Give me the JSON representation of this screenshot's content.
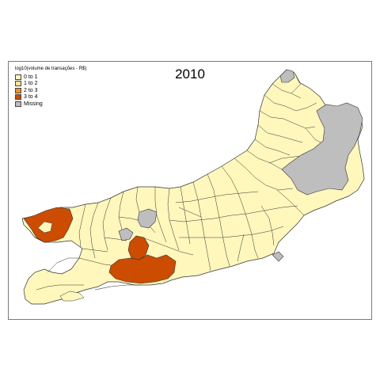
{
  "map": {
    "title": "2010",
    "legend": {
      "title": "log10(volume de transações - R$)",
      "items": [
        {
          "label": "0 to 1",
          "color": "#FFF7BC"
        },
        {
          "label": "1 to 2",
          "color": "#FEE391"
        },
        {
          "label": "2 to 3",
          "color": "#F58F22"
        },
        {
          "label": "3 to 4",
          "color": "#CC4C02"
        },
        {
          "label": "Missing",
          "color": "#BEBEBE"
        }
      ]
    },
    "colors": {
      "border": "#333333",
      "frame": "#7a7a7a",
      "class_0_1": "#FFF7BC",
      "class_3_4": "#CC4C02",
      "missing": "#BEBEBE"
    }
  }
}
